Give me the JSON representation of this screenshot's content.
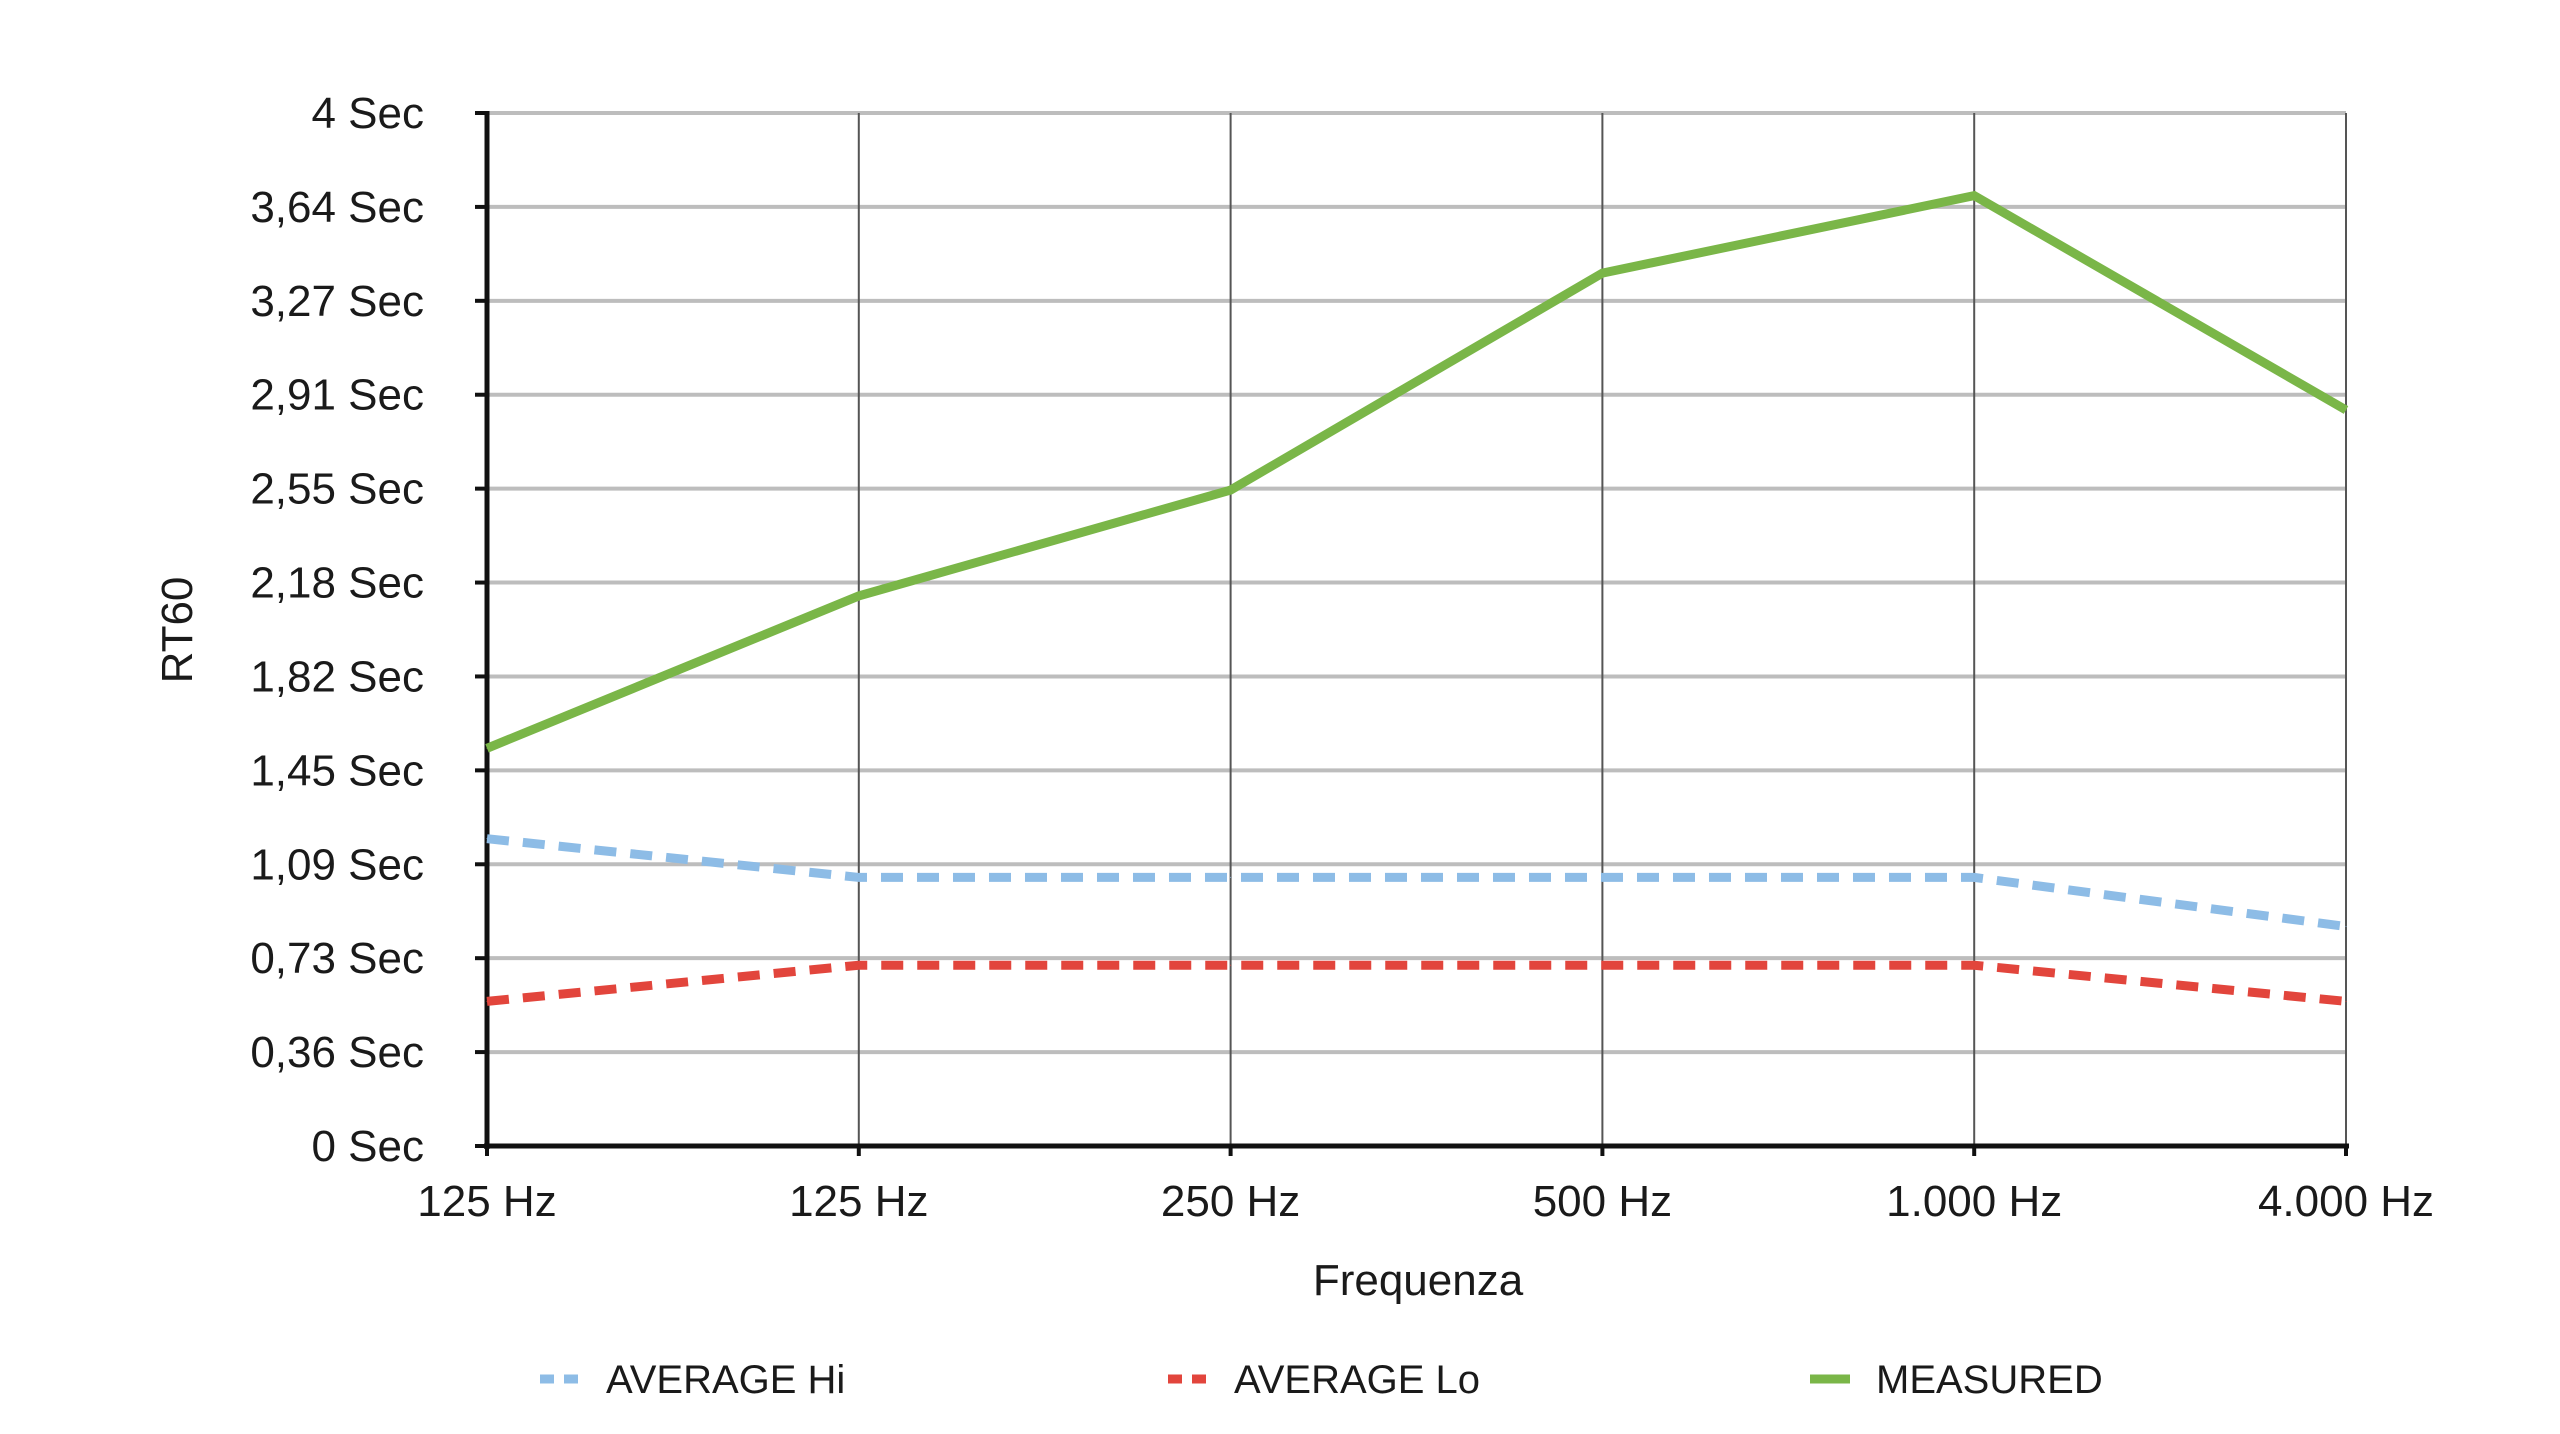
{
  "chart_data": {
    "type": "line",
    "xlabel": "Frequenza",
    "ylabel": "RT60",
    "categories": [
      "125 Hz",
      "125 Hz",
      "250 Hz",
      "500 Hz",
      "1.000 Hz",
      "4.000 Hz"
    ],
    "y_ticks": [
      "0 Sec",
      "0,36 Sec",
      "0,73 Sec",
      "1,09 Sec",
      "1,45 Sec",
      "1,82 Sec",
      "2,18 Sec",
      "2,55 Sec",
      "2,91 Sec",
      "3,27 Sec",
      "3,64 Sec",
      "4 Sec"
    ],
    "ylim": [
      0,
      4
    ],
    "grid": true,
    "legend_position": "bottom",
    "series": [
      {
        "name": "AVERAGE Hi",
        "color": "#8dbce6",
        "style": "dashed",
        "values": [
          1.19,
          1.04,
          1.04,
          1.04,
          1.04,
          0.85
        ]
      },
      {
        "name": "AVERAGE Lo",
        "color": "#e2453c",
        "style": "dashed",
        "values": [
          0.56,
          0.7,
          0.7,
          0.7,
          0.7,
          0.56
        ]
      },
      {
        "name": "MEASURED",
        "color": "#7ab648",
        "style": "solid",
        "values": [
          1.54,
          2.13,
          2.54,
          3.38,
          3.68,
          2.85
        ]
      }
    ]
  }
}
